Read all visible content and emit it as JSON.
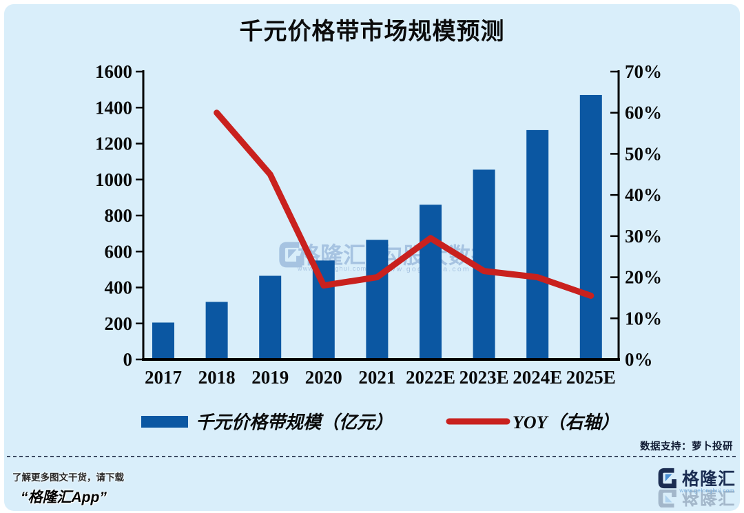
{
  "chart_data": {
    "type": "bar",
    "title": "千元价格带市场规模预测",
    "categories": [
      "2017",
      "2018",
      "2019",
      "2020",
      "2021",
      "2022E",
      "2023E",
      "2024E",
      "2025E"
    ],
    "series": [
      {
        "name": "千元价格带规模（亿元）",
        "type": "bar",
        "axis": "left",
        "color": "#0b57a2",
        "values": [
          205,
          320,
          465,
          550,
          665,
          860,
          1055,
          1275,
          1470
        ]
      },
      {
        "name": "YOY（右轴）",
        "type": "line",
        "axis": "right",
        "color": "#c9211e",
        "values": [
          null,
          60,
          45,
          18,
          20,
          29.5,
          21.5,
          20,
          15.5
        ]
      }
    ],
    "left_axis": {
      "min": 0,
      "max": 1600,
      "tick_values": [
        0,
        200,
        400,
        600,
        800,
        1000,
        1200,
        1400,
        1600
      ],
      "tick_labels": [
        "0",
        "200",
        "400",
        "600",
        "800",
        "1000",
        "1200",
        "1400",
        "1600"
      ]
    },
    "right_axis": {
      "min": 0,
      "max": 70,
      "tick_values": [
        0,
        10,
        20,
        30,
        40,
        50,
        60,
        70
      ],
      "tick_labels": [
        "0%",
        "10%",
        "20%",
        "30%",
        "40%",
        "50%",
        "60%",
        "70%"
      ]
    },
    "legend_position": "bottom",
    "grid": false
  },
  "watermark": {
    "left_brand": "格隆汇",
    "left_url": "www.gelonghui.com",
    "right_brand": "勾股大数据",
    "right_url": "www.gogudata.com"
  },
  "footer": {
    "data_support": "数据支持：萝卜投研",
    "promo_line1": "了解更多图文干货，请下载",
    "promo_line2": "“格隆汇App”",
    "logo_text": "格隆汇",
    "logo_url": "www.gelonghui.com"
  },
  "colors": {
    "background": "#d9eefa",
    "bar": "#0b57a2",
    "line": "#c9211e",
    "axis": "#000000",
    "watermark": "#7da0cd",
    "brand_navy": "#1b2d52",
    "brand_blue": "#4a8fd3"
  }
}
